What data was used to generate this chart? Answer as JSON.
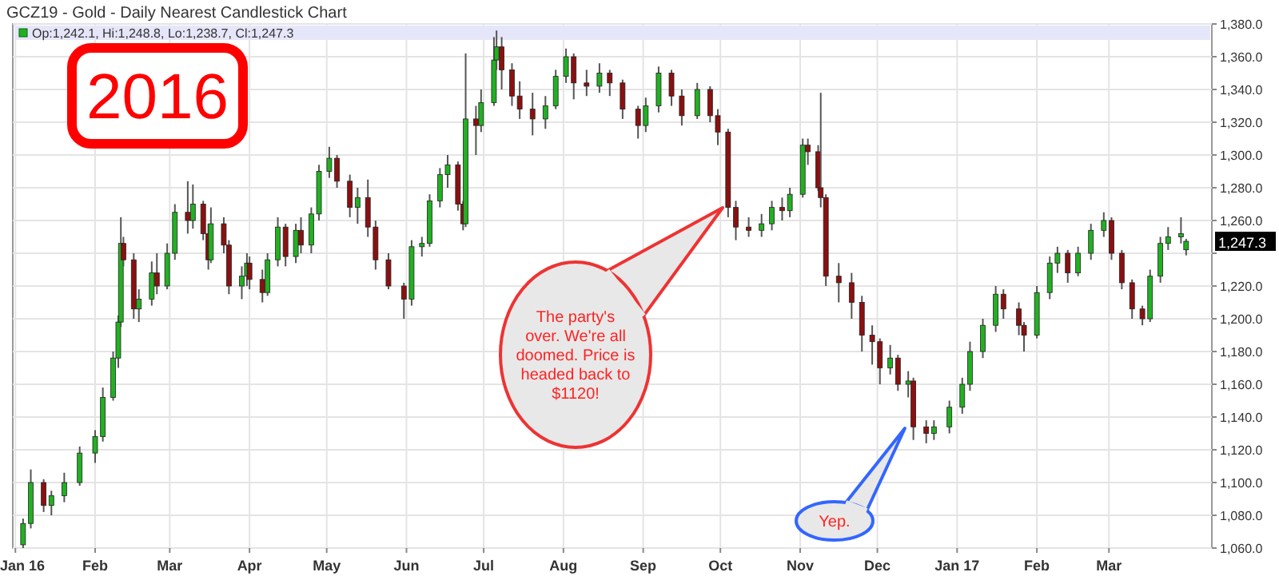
{
  "chart_data": {
    "type": "candlestick",
    "title": "GCZ19 - Gold - Daily Nearest Candlestick Chart",
    "x": [
      "2016-01-04",
      "2016-01-07",
      "2016-01-12",
      "2016-01-15",
      "2016-01-20",
      "2016-01-26",
      "2016-02-01",
      "2016-02-04",
      "2016-02-08",
      "2016-02-10",
      "2016-02-11",
      "2016-02-12",
      "2016-02-16",
      "2016-02-18",
      "2016-02-23",
      "2016-02-25",
      "2016-02-29",
      "2016-03-03",
      "2016-03-08",
      "2016-03-10",
      "2016-03-14",
      "2016-03-16",
      "2016-03-17",
      "2016-03-22",
      "2016-03-24",
      "2016-03-29",
      "2016-03-31",
      "2016-04-01",
      "2016-04-06",
      "2016-04-08",
      "2016-04-12",
      "2016-04-15",
      "2016-04-19",
      "2016-04-21",
      "2016-04-25",
      "2016-04-28",
      "2016-05-02",
      "2016-05-05",
      "2016-05-10",
      "2016-05-13",
      "2016-05-17",
      "2016-05-20",
      "2016-05-25",
      "2016-05-31",
      "2016-06-03",
      "2016-06-07",
      "2016-06-10",
      "2016-06-14",
      "2016-06-17",
      "2016-06-21",
      "2016-06-23",
      "2016-06-24",
      "2016-06-28",
      "2016-06-30",
      "2016-07-05",
      "2016-07-06",
      "2016-07-08",
      "2016-07-12",
      "2016-07-15",
      "2016-07-20",
      "2016-07-25",
      "2016-07-29",
      "2016-08-02",
      "2016-08-05",
      "2016-08-10",
      "2016-08-15",
      "2016-08-19",
      "2016-08-24",
      "2016-08-30",
      "2016-09-02",
      "2016-09-07",
      "2016-09-12",
      "2016-09-16",
      "2016-09-22",
      "2016-09-27",
      "2016-09-30",
      "2016-10-04",
      "2016-10-07",
      "2016-10-12",
      "2016-10-17",
      "2016-10-21",
      "2016-10-25",
      "2016-10-28",
      "2016-11-02",
      "2016-11-04",
      "2016-11-08",
      "2016-11-09",
      "2016-11-11",
      "2016-11-16",
      "2016-11-21",
      "2016-11-25",
      "2016-11-29",
      "2016-12-02",
      "2016-12-06",
      "2016-12-09",
      "2016-12-13",
      "2016-12-15",
      "2016-12-20",
      "2016-12-23",
      "2016-12-29",
      "2017-01-03",
      "2017-01-06",
      "2017-01-11",
      "2017-01-16",
      "2017-01-19",
      "2017-01-25",
      "2017-01-27",
      "2017-02-01",
      "2017-02-06",
      "2017-02-09",
      "2017-02-13",
      "2017-02-17",
      "2017-02-22",
      "2017-02-27",
      "2017-03-02",
      "2017-03-06",
      "2017-03-10",
      "2017-03-14",
      "2017-03-17",
      "2017-03-21",
      "2017-03-24",
      "2017-03-29",
      "2017-03-31"
    ],
    "ohlc": [
      [
        1062,
        1078,
        1060,
        1075
      ],
      [
        1075,
        1108,
        1072,
        1100
      ],
      [
        1100,
        1102,
        1082,
        1086
      ],
      [
        1086,
        1095,
        1080,
        1092
      ],
      [
        1092,
        1106,
        1088,
        1100
      ],
      [
        1100,
        1122,
        1098,
        1118
      ],
      [
        1118,
        1132,
        1112,
        1128
      ],
      [
        1128,
        1158,
        1125,
        1152
      ],
      [
        1152,
        1180,
        1150,
        1176
      ],
      [
        1176,
        1202,
        1170,
        1198
      ],
      [
        1198,
        1262,
        1195,
        1246
      ],
      [
        1246,
        1250,
        1232,
        1236
      ],
      [
        1236,
        1240,
        1200,
        1206
      ],
      [
        1206,
        1218,
        1198,
        1212
      ],
      [
        1212,
        1235,
        1208,
        1228
      ],
      [
        1228,
        1240,
        1215,
        1220
      ],
      [
        1220,
        1246,
        1218,
        1240
      ],
      [
        1240,
        1270,
        1236,
        1265
      ],
      [
        1265,
        1284,
        1252,
        1260
      ],
      [
        1260,
        1282,
        1255,
        1270
      ],
      [
        1270,
        1272,
        1248,
        1252
      ],
      [
        1252,
        1258,
        1230,
        1236
      ],
      [
        1236,
        1268,
        1234,
        1258
      ],
      [
        1258,
        1262,
        1240,
        1245
      ],
      [
        1245,
        1248,
        1215,
        1220
      ],
      [
        1220,
        1232,
        1212,
        1226
      ],
      [
        1226,
        1240,
        1220,
        1234
      ],
      [
        1234,
        1238,
        1218,
        1224
      ],
      [
        1224,
        1230,
        1210,
        1216
      ],
      [
        1216,
        1240,
        1214,
        1236
      ],
      [
        1236,
        1262,
        1232,
        1256
      ],
      [
        1256,
        1258,
        1232,
        1238
      ],
      [
        1238,
        1258,
        1234,
        1254
      ],
      [
        1254,
        1262,
        1240,
        1245
      ],
      [
        1245,
        1268,
        1240,
        1264
      ],
      [
        1264,
        1294,
        1260,
        1290
      ],
      [
        1290,
        1305,
        1286,
        1298
      ],
      [
        1298,
        1300,
        1280,
        1284
      ],
      [
        1284,
        1288,
        1262,
        1268
      ],
      [
        1268,
        1280,
        1258,
        1274
      ],
      [
        1274,
        1285,
        1250,
        1256
      ],
      [
        1256,
        1260,
        1230,
        1236
      ],
      [
        1236,
        1240,
        1218,
        1220
      ],
      [
        1220,
        1222,
        1200,
        1212
      ],
      [
        1212,
        1248,
        1208,
        1244
      ],
      [
        1244,
        1250,
        1238,
        1246
      ],
      [
        1246,
        1276,
        1244,
        1272
      ],
      [
        1272,
        1292,
        1268,
        1288
      ],
      [
        1288,
        1300,
        1280,
        1294
      ],
      [
        1294,
        1296,
        1266,
        1270
      ],
      [
        1270,
        1272,
        1254,
        1258
      ],
      [
        1258,
        1362,
        1256,
        1322
      ],
      [
        1322,
        1330,
        1300,
        1318
      ],
      [
        1318,
        1340,
        1314,
        1332
      ],
      [
        1332,
        1372,
        1330,
        1358
      ],
      [
        1358,
        1376,
        1352,
        1366
      ],
      [
        1366,
        1372,
        1340,
        1352
      ],
      [
        1352,
        1356,
        1330,
        1336
      ],
      [
        1336,
        1345,
        1322,
        1328
      ],
      [
        1328,
        1338,
        1312,
        1322
      ],
      [
        1322,
        1336,
        1316,
        1330
      ],
      [
        1330,
        1352,
        1328,
        1348
      ],
      [
        1348,
        1365,
        1344,
        1360
      ],
      [
        1360,
        1362,
        1334,
        1344
      ],
      [
        1344,
        1352,
        1336,
        1342
      ],
      [
        1342,
        1356,
        1338,
        1350
      ],
      [
        1350,
        1352,
        1336,
        1344
      ],
      [
        1344,
        1346,
        1322,
        1328
      ],
      [
        1328,
        1330,
        1310,
        1318
      ],
      [
        1318,
        1335,
        1314,
        1330
      ],
      [
        1330,
        1354,
        1326,
        1350
      ],
      [
        1350,
        1352,
        1330,
        1336
      ],
      [
        1336,
        1340,
        1318,
        1324
      ],
      [
        1324,
        1344,
        1322,
        1340
      ],
      [
        1340,
        1342,
        1320,
        1324
      ],
      [
        1324,
        1328,
        1306,
        1314
      ],
      [
        1314,
        1316,
        1262,
        1268
      ],
      [
        1268,
        1272,
        1248,
        1256
      ],
      [
        1256,
        1262,
        1250,
        1254
      ],
      [
        1254,
        1264,
        1250,
        1258
      ],
      [
        1258,
        1272,
        1254,
        1268
      ],
      [
        1268,
        1274,
        1260,
        1266
      ],
      [
        1266,
        1280,
        1262,
        1276
      ],
      [
        1276,
        1310,
        1274,
        1306
      ],
      [
        1306,
        1310,
        1294,
        1302
      ],
      [
        1302,
        1306,
        1278,
        1280
      ],
      [
        1280,
        1338,
        1268,
        1274
      ],
      [
        1274,
        1276,
        1220,
        1226
      ],
      [
        1226,
        1234,
        1210,
        1222
      ],
      [
        1222,
        1228,
        1200,
        1210
      ],
      [
        1210,
        1214,
        1180,
        1190
      ],
      [
        1190,
        1196,
        1172,
        1186
      ],
      [
        1186,
        1188,
        1160,
        1170
      ],
      [
        1170,
        1184,
        1166,
        1176
      ],
      [
        1176,
        1178,
        1156,
        1160
      ],
      [
        1160,
        1168,
        1152,
        1162
      ],
      [
        1162,
        1164,
        1126,
        1134
      ],
      [
        1134,
        1138,
        1124,
        1130
      ],
      [
        1130,
        1138,
        1126,
        1134
      ],
      [
        1134,
        1150,
        1130,
        1146
      ],
      [
        1146,
        1164,
        1142,
        1160
      ],
      [
        1160,
        1186,
        1156,
        1180
      ],
      [
        1180,
        1200,
        1176,
        1196
      ],
      [
        1196,
        1220,
        1192,
        1215
      ],
      [
        1215,
        1218,
        1200,
        1206
      ],
      [
        1206,
        1210,
        1190,
        1196
      ],
      [
        1196,
        1198,
        1180,
        1190
      ],
      [
        1190,
        1220,
        1188,
        1216
      ],
      [
        1216,
        1238,
        1212,
        1234
      ],
      [
        1234,
        1244,
        1228,
        1240
      ],
      [
        1240,
        1242,
        1222,
        1228
      ],
      [
        1228,
        1244,
        1226,
        1240
      ],
      [
        1240,
        1258,
        1236,
        1254
      ],
      [
        1254,
        1265,
        1250,
        1260
      ],
      [
        1260,
        1262,
        1236,
        1240
      ],
      [
        1240,
        1242,
        1218,
        1222
      ],
      [
        1222,
        1224,
        1200,
        1206
      ],
      [
        1206,
        1208,
        1196,
        1200
      ],
      [
        1200,
        1230,
        1198,
        1226
      ],
      [
        1226,
        1250,
        1222,
        1246
      ],
      [
        1246,
        1256,
        1242,
        1250
      ],
      [
        1250,
        1262,
        1246,
        1252
      ],
      [
        1242.1,
        1248.8,
        1238.7,
        1247.3
      ]
    ],
    "xlim": [
      "2015-12-31",
      "2017-04-10"
    ],
    "xticks": [
      {
        "value": "2016-01-01",
        "label": "Jan 16"
      },
      {
        "value": "2016-02-01",
        "label": "Feb"
      },
      {
        "value": "2016-03-01",
        "label": "Mar"
      },
      {
        "value": "2016-04-01",
        "label": "Apr"
      },
      {
        "value": "2016-05-01",
        "label": "May"
      },
      {
        "value": "2016-06-01",
        "label": "Jun"
      },
      {
        "value": "2016-07-01",
        "label": "Jul"
      },
      {
        "value": "2016-08-01",
        "label": "Aug"
      },
      {
        "value": "2016-09-01",
        "label": "Sep"
      },
      {
        "value": "2016-10-01",
        "label": "Oct"
      },
      {
        "value": "2016-11-01",
        "label": "Nov"
      },
      {
        "value": "2016-12-01",
        "label": "Dec"
      },
      {
        "value": "2017-01-01",
        "label": "Jan 17"
      },
      {
        "value": "2017-02-01",
        "label": "Feb"
      },
      {
        "value": "2017-03-01",
        "label": "Mar"
      }
    ],
    "ylim": [
      1060,
      1380
    ],
    "yticks": [
      {
        "value": 1060,
        "label": "1,060.0"
      },
      {
        "value": 1080,
        "label": "1,080.0"
      },
      {
        "value": 1100,
        "label": "1,100.0"
      },
      {
        "value": 1120,
        "label": "1,120.0"
      },
      {
        "value": 1140,
        "label": "1,140.0"
      },
      {
        "value": 1160,
        "label": "1,160.0"
      },
      {
        "value": 1180,
        "label": "1,180.0"
      },
      {
        "value": 1200,
        "label": "1,200.0"
      },
      {
        "value": 1220,
        "label": "1,220.0"
      },
      {
        "value": 1240,
        "label": null
      },
      {
        "value": 1260,
        "label": "1,260.0"
      },
      {
        "value": 1280,
        "label": "1,280.0"
      },
      {
        "value": 1300,
        "label": "1,300.0"
      },
      {
        "value": 1320,
        "label": "1,320.0"
      },
      {
        "value": 1340,
        "label": "1,340.0"
      },
      {
        "value": 1360,
        "label": "1,360.0"
      },
      {
        "value": 1380,
        "label": "1,380.0"
      }
    ],
    "grid": true,
    "annotations": [
      "Op:1,242.1, Hi:1,248.8, Lo:1,238.7, Cl:1,247.3",
      "2016",
      "1,247.3",
      "The party's over. We're all doomed. Price is headed back to $1120!",
      "Yep."
    ]
  }
}
